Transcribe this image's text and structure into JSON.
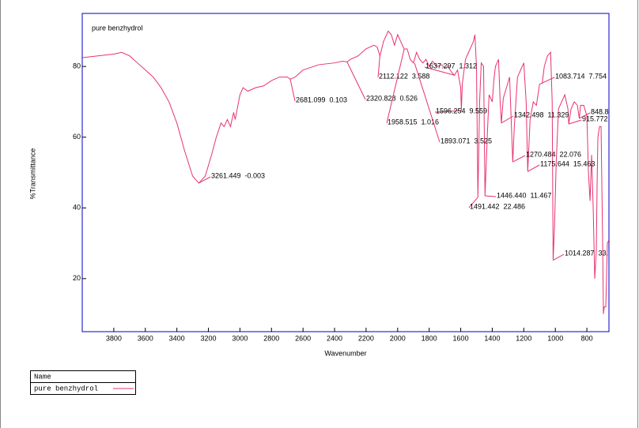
{
  "chart_data": {
    "type": "line",
    "title": "pure benzhydrol",
    "x_label": "Wavenumber",
    "y_label": "%Transmittance",
    "legend_header": "Name",
    "xlim": [
      4000,
      660
    ],
    "ylim": [
      5,
      95
    ],
    "xticks": [
      3800,
      3600,
      3400,
      3200,
      3000,
      2800,
      2600,
      2400,
      2200,
      2000,
      1800,
      1600,
      1400,
      1200,
      1000,
      800
    ],
    "yticks": [
      20,
      40,
      60,
      80
    ],
    "x": [
      4000,
      3900,
      3800,
      3750,
      3700,
      3650,
      3600,
      3550,
      3500,
      3450,
      3400,
      3350,
      3300,
      3261,
      3220,
      3180,
      3150,
      3120,
      3100,
      3080,
      3060,
      3040,
      3030,
      3000,
      2980,
      2950,
      2900,
      2850,
      2800,
      2750,
      2700,
      2681,
      2650,
      2600,
      2500,
      2400,
      2350,
      2320,
      2300,
      2250,
      2200,
      2150,
      2130,
      2112,
      2090,
      2060,
      2040,
      2020,
      2000,
      1980,
      1958,
      1940,
      1920,
      1900,
      1880,
      1860,
      1840,
      1820,
      1800,
      1780,
      1750,
      1720,
      1700,
      1680,
      1660,
      1640,
      1620,
      1600,
      1596,
      1590,
      1570,
      1550,
      1520,
      1510,
      1500,
      1491,
      1480,
      1470,
      1455,
      1446,
      1430,
      1420,
      1400,
      1390,
      1380,
      1360,
      1350,
      1342,
      1330,
      1310,
      1290,
      1280,
      1270,
      1260,
      1240,
      1220,
      1200,
      1185,
      1175,
      1160,
      1140,
      1120,
      1100,
      1083,
      1070,
      1050,
      1030,
      1020,
      1014,
      1005,
      995,
      980,
      960,
      940,
      920,
      915,
      900,
      880,
      860,
      848,
      840,
      820,
      800,
      790,
      780,
      770,
      760,
      750,
      740,
      735,
      730,
      720,
      710,
      700,
      695,
      690,
      680,
      670,
      660
    ],
    "series": [
      {
        "name": "pure benzhydrol",
        "color": "#e8336d",
        "values": [
          82.5,
          83,
          83.5,
          84,
          83,
          81,
          79,
          77,
          74,
          70,
          64,
          56,
          49,
          47,
          49,
          55,
          60,
          64,
          63,
          65,
          63,
          67,
          65,
          72,
          74,
          73,
          74,
          74.5,
          76,
          77,
          77,
          76.4,
          77,
          79,
          80.5,
          81,
          81.5,
          81.3,
          82,
          83,
          85,
          86,
          85.5,
          83,
          87,
          90,
          89,
          86,
          89,
          87,
          84.9,
          85,
          82,
          81,
          84,
          82,
          81,
          82,
          80,
          81.5,
          80,
          80.5,
          79.5,
          80,
          78.5,
          77.5,
          79,
          74,
          67.5,
          75,
          82,
          84,
          87,
          89,
          80,
          43,
          70,
          81,
          80,
          43.4,
          62,
          72,
          70,
          76,
          80,
          82,
          70,
          64,
          71,
          74,
          77,
          65,
          53,
          63,
          77,
          79,
          81,
          70,
          50.3,
          65,
          70,
          69,
          75,
          75.3,
          80,
          83,
          84,
          70,
          25.2,
          35,
          52,
          68,
          70,
          72,
          68,
          63.7,
          68,
          70,
          69,
          65.3,
          69,
          69,
          66,
          50,
          42,
          55,
          40,
          20,
          28,
          47,
          60,
          63,
          63,
          30,
          10,
          12,
          12,
          30,
          31
        ]
      }
    ],
    "annotations": [
      {
        "text": "3261.449  -0.003",
        "x": 3261.449,
        "y": 47
      },
      {
        "text": "2681.099  0.103",
        "x": 2681.099,
        "y": 76.4
      },
      {
        "text": "2320.828  0.526",
        "x": 2320.828,
        "y": 81.3
      },
      {
        "text": "2112.122  3.588",
        "x": 2112.122,
        "y": 83.1
      },
      {
        "text": "1958.515  1.016",
        "x": 1958.515,
        "y": 84.9
      },
      {
        "text": "1893.071  3.525",
        "x": 1893.071,
        "y": 81
      },
      {
        "text": "1637.297  1.312",
        "x": 1637.297,
        "y": 77.5
      },
      {
        "text": "1596.254  9.559",
        "x": 1596.254,
        "y": 67.5
      },
      {
        "text": "1491.442  22.486",
        "x": 1491.442,
        "y": 43
      },
      {
        "text": "1446.440  11.467",
        "x": 1446.44,
        "y": 43.4
      },
      {
        "text": "1342.498  11.329",
        "x": 1342.498,
        "y": 64
      },
      {
        "text": "1270.484  22.076",
        "x": 1270.484,
        "y": 53
      },
      {
        "text": "1175.644  15.463",
        "x": 1175.644,
        "y": 50.3
      },
      {
        "text": "1083.714  7.754",
        "x": 1083.714,
        "y": 75.3
      },
      {
        "text": "1014.287  33.",
        "x": 1014.287,
        "y": 25.2
      },
      {
        "text": "915.772",
        "x": 915.772,
        "y": 63.7
      },
      {
        "text": "848.8",
        "x": 848.8,
        "y": 65.3
      }
    ]
  }
}
